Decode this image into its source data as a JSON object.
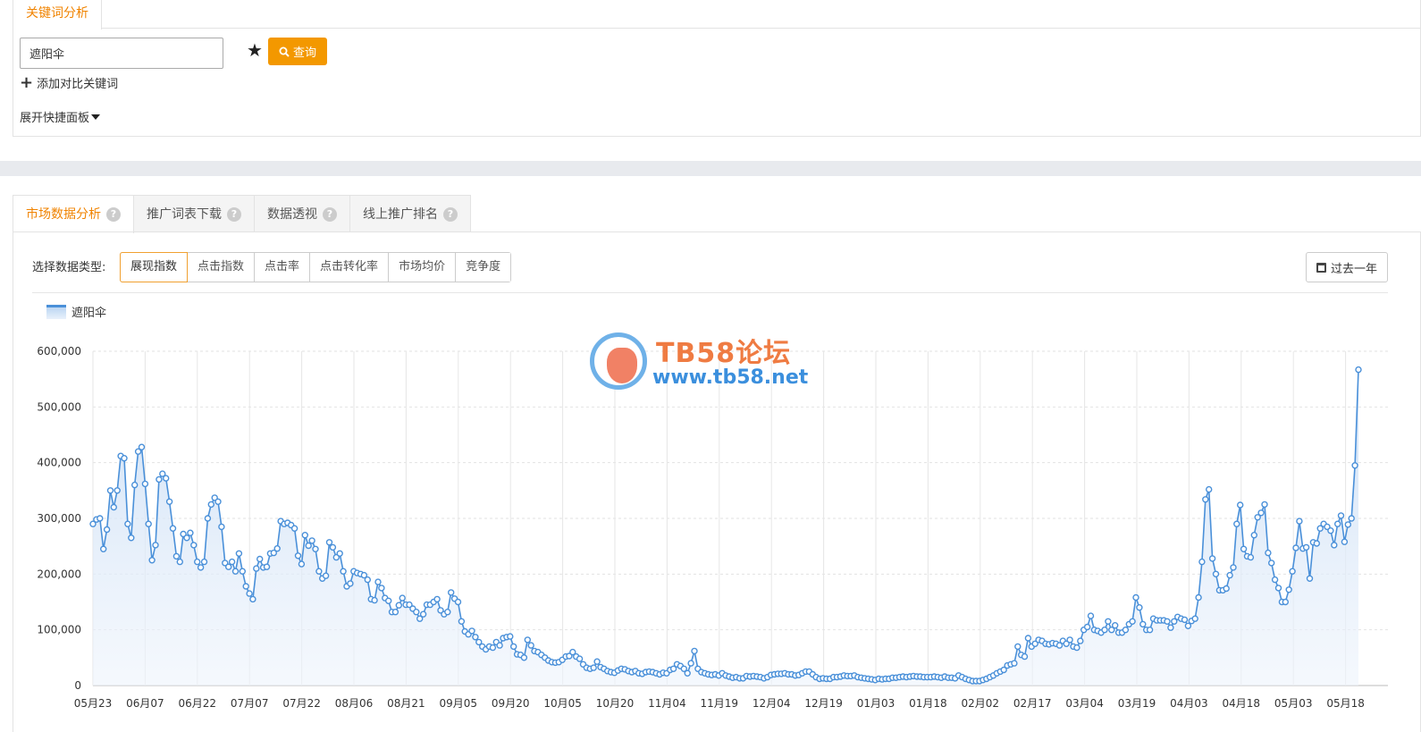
{
  "top_panel": {
    "tab_label": "关键词分析",
    "keyword_value": "遮阳伞",
    "query_label": "查询",
    "add_compare_label": "添加对比关键词",
    "expand_panel_label": "展开快捷面板"
  },
  "tabs": [
    {
      "label": "市场数据分析",
      "active": true
    },
    {
      "label": "推广词表下载",
      "active": false
    },
    {
      "label": "数据透视",
      "active": false
    },
    {
      "label": "线上推广排名",
      "active": false
    }
  ],
  "data_type": {
    "label": "选择数据类型:",
    "options": [
      "展现指数",
      "点击指数",
      "点击率",
      "点击转化率",
      "市场均价",
      "竞争度"
    ],
    "selected": "展现指数"
  },
  "date_range_label": "过去一年",
  "watermark": {
    "title": "TB58论坛",
    "url": "www.tb58.net"
  },
  "colors": {
    "accent": "#f39800",
    "line": "#4a90d9"
  },
  "chart_data": {
    "type": "line",
    "x_labels": [
      "05月23",
      "06月07",
      "06月22",
      "07月07",
      "07月22",
      "08月06",
      "08月21",
      "09月05",
      "09月20",
      "10月05",
      "10月20",
      "11月04",
      "11月19",
      "12月04",
      "12月19",
      "01月03",
      "01月18",
      "02月02",
      "02月17",
      "03月04",
      "03月19",
      "04月03",
      "04月18",
      "05月03",
      "05月18"
    ],
    "yticks": [
      "600,000",
      "500,000",
      "400,000",
      "300,000",
      "200,000",
      "100,000",
      "0"
    ],
    "ylim": [
      0,
      600000
    ],
    "grid": true,
    "series": [
      {
        "name": "遮阳伞",
        "values": [
          290000,
          298000,
          300000,
          245000,
          280000,
          350000,
          320000,
          350000,
          412000,
          408000,
          290000,
          265000,
          360000,
          420000,
          428000,
          362000,
          290000,
          225000,
          252000,
          370000,
          380000,
          372000,
          330000,
          282000,
          232000,
          222000,
          272000,
          265000,
          274000,
          252000,
          222000,
          212000,
          222000,
          300000,
          325000,
          337000,
          330000,
          285000,
          220000,
          213000,
          222000,
          205000,
          237000,
          205000,
          178000,
          165000,
          155000,
          210000,
          227000,
          212000,
          213000,
          237000,
          238000,
          246000,
          295000,
          290000,
          292000,
          288000,
          282000,
          233000,
          218000,
          270000,
          251000,
          260000,
          245000,
          205000,
          192000,
          197000,
          257000,
          248000,
          230000,
          237000,
          205000,
          178000,
          183000,
          205000,
          202000,
          200000,
          198000,
          190000,
          155000,
          153000,
          186000,
          175000,
          157000,
          152000,
          132000,
          132000,
          144000,
          157000,
          145000,
          145000,
          138000,
          132000,
          120000,
          128000,
          145000,
          145000,
          150000,
          155000,
          135000,
          128000,
          132000,
          167000,
          156000,
          150000,
          115000,
          97000,
          92000,
          98000,
          87000,
          78000,
          70000,
          65000,
          70000,
          68000,
          78000,
          72000,
          85000,
          87000,
          88000,
          70000,
          56000,
          55000,
          50000,
          82000,
          72000,
          62000,
          60000,
          55000,
          50000,
          45000,
          42000,
          41000,
          42000,
          46000,
          52000,
          53000,
          60000,
          52000,
          48000,
          38000,
          32000,
          30000,
          32000,
          43000,
          33000,
          30000,
          26000,
          24000,
          23000,
          27000,
          30000,
          29000,
          26000,
          24000,
          26000,
          22000,
          21000,
          24000,
          25000,
          24000,
          22000,
          20000,
          23000,
          22000,
          28000,
          30000,
          38000,
          35000,
          30000,
          22000,
          40000,
          62000,
          30000,
          24000,
          22000,
          20000,
          19000,
          20000,
          18000,
          22000,
          18000,
          16000,
          14000,
          15000,
          13000,
          13000,
          17000,
          16000,
          17000,
          16000,
          15000,
          13000,
          15000,
          19000,
          20000,
          21000,
          21000,
          22000,
          20000,
          20000,
          18000,
          19000,
          22000,
          25000,
          25000,
          20000,
          15000,
          12000,
          13000,
          12000,
          12000,
          15000,
          15000,
          16000,
          18000,
          17000,
          17000,
          18000,
          15000,
          14000,
          13000,
          12000,
          11000,
          10000,
          12000,
          11000,
          12000,
          12000,
          14000,
          14000,
          15000,
          16000,
          15000,
          16000,
          17000,
          16000,
          16000,
          15000,
          15000,
          15000,
          16000,
          15000,
          14000,
          16000,
          14000,
          14000,
          13000,
          18000,
          15000,
          12000,
          10000,
          8000,
          8000,
          8000,
          10000,
          12000,
          15000,
          18000,
          22000,
          25000,
          28000,
          36000,
          38000,
          40000,
          70000,
          55000,
          52000,
          85000,
          70000,
          75000,
          82000,
          80000,
          75000,
          74000,
          76000,
          75000,
          72000,
          80000,
          75000,
          82000,
          70000,
          68000,
          80000,
          100000,
          105000,
          125000,
          100000,
          98000,
          95000,
          100000,
          115000,
          100000,
          108000,
          95000,
          95000,
          100000,
          110000,
          115000,
          158000,
          140000,
          110000,
          100000,
          100000,
          120000,
          117000,
          117000,
          117000,
          115000,
          104000,
          115000,
          123000,
          120000,
          118000,
          107000,
          116000,
          120000,
          158000,
          222000,
          334000,
          352000,
          228000,
          200000,
          171000,
          171000,
          174000,
          198000,
          212000,
          290000,
          324000,
          245000,
          232000,
          230000,
          270000,
          302000,
          310000,
          325000,
          238000,
          220000,
          190000,
          175000,
          150000,
          150000,
          172000,
          205000,
          247000,
          295000,
          246000,
          248000,
          192000,
          257000,
          255000,
          282000,
          290000,
          285000,
          278000,
          252000,
          290000,
          305000,
          258000,
          289000,
          300000,
          395000,
          567000
        ]
      }
    ]
  }
}
